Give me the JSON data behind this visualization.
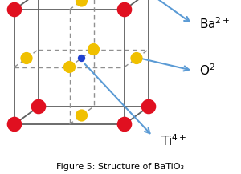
{
  "title": "Figure 5: Structure of BaTiO₃",
  "ba_color": "#e01020",
  "o_color": "#f0c000",
  "ti_color": "#2040d0",
  "arrow_color": "#5b9bd5",
  "bg_color": "#ffffff",
  "cube_color": "#606060",
  "dashed_color": "#909090",
  "ba_size": 180,
  "o_size": 120,
  "ti_size": 45,
  "figw": 3.0,
  "figh": 2.17,
  "dpi": 100
}
